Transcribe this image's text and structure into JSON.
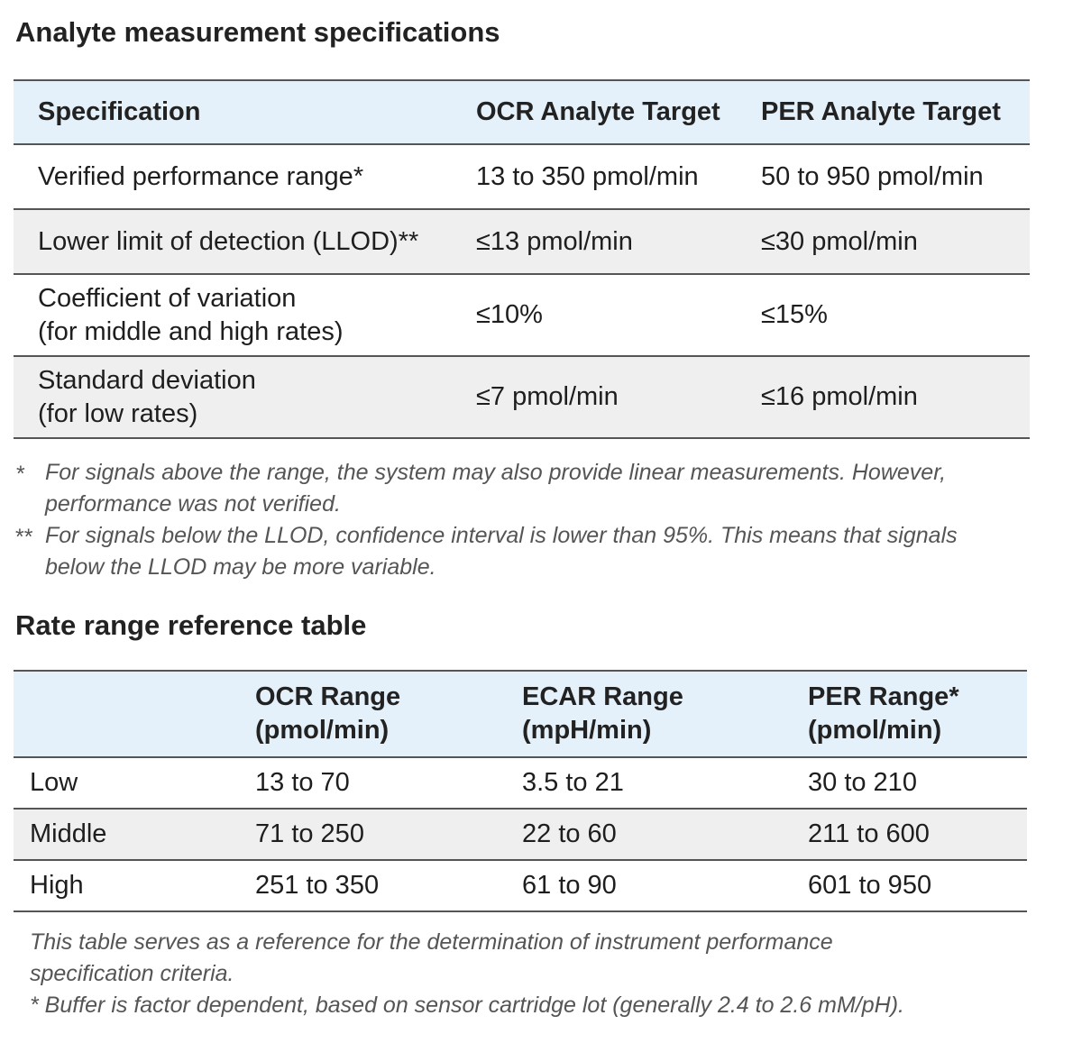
{
  "section1": {
    "title": "Analyte measurement specifications",
    "headers": [
      "Specification",
      "OCR Analyte Target",
      "PER Analyte Target"
    ],
    "rows": [
      {
        "spec": "Verified performance range*",
        "spec_line2": "",
        "ocr": "13 to 350 pmol/min",
        "per": "50 to 950 pmol/min"
      },
      {
        "spec": "Lower limit of detection (LLOD)**",
        "spec_line2": "",
        "ocr": "≤13 pmol/min",
        "per": "≤30 pmol/min"
      },
      {
        "spec": "Coefficient of variation",
        "spec_line2": "(for middle and high rates)",
        "ocr": "≤10%",
        "per": "≤15%"
      },
      {
        "spec": "Standard deviation",
        "spec_line2": "(for low rates)",
        "ocr": "≤7 pmol/min",
        "per": "≤16 pmol/min"
      }
    ],
    "footnotes": [
      {
        "marker": "*",
        "text": "For signals above the range, the system may also provide linear measurements. However, performance was not verified."
      },
      {
        "marker": "**",
        "text": "For signals below the LLOD, confidence interval is lower than 95%. This means that signals below the LLOD may be more variable."
      }
    ]
  },
  "section2": {
    "title": "Rate range reference table",
    "headers": [
      {
        "line1": "",
        "line2": ""
      },
      {
        "line1": "OCR Range",
        "line2": "(pmol/min)"
      },
      {
        "line1": "ECAR Range",
        "line2": "(mpH/min)"
      },
      {
        "line1": "PER Range*",
        "line2": "(pmol/min)"
      }
    ],
    "rows": [
      {
        "level": "Low",
        "ocr": "13 to 70",
        "ecar": "3.5 to 21",
        "per": "30 to 210"
      },
      {
        "level": "Middle",
        "ocr": "71 to 250",
        "ecar": "22 to 60",
        "per": "211 to 600"
      },
      {
        "level": "High",
        "ocr": "251 to 350",
        "ecar": "61 to 90",
        "per": "601 to 950"
      }
    ],
    "notes": [
      "This table serves as a reference for the determination of instrument performance specification criteria.",
      "* Buffer is factor dependent, based on sensor cartridge lot (generally 2.4 to 2.6 mM/pH)."
    ]
  }
}
